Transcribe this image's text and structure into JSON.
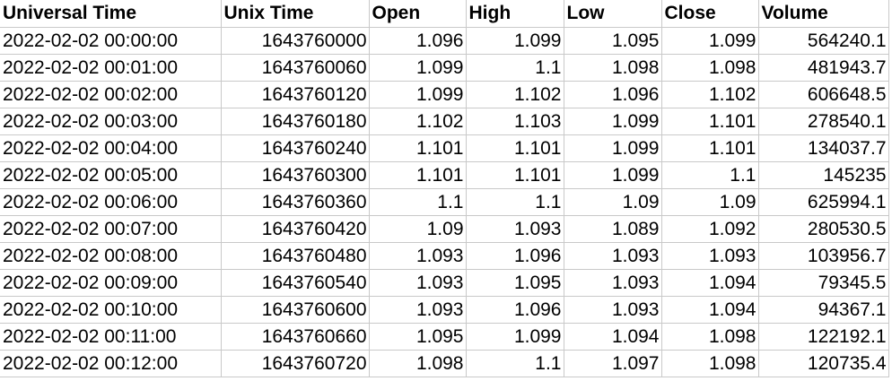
{
  "sheet": {
    "headers": [
      "Universal Time",
      "Unix Time",
      "Open",
      "High",
      "Low",
      "Close",
      "Volume"
    ],
    "rows": [
      [
        "2022-02-02 00:00:00",
        "1643760000",
        "1.096",
        "1.099",
        "1.095",
        "1.099",
        "564240.1"
      ],
      [
        "2022-02-02 00:01:00",
        "1643760060",
        "1.099",
        "1.1",
        "1.098",
        "1.098",
        "481943.7"
      ],
      [
        "2022-02-02 00:02:00",
        "1643760120",
        "1.099",
        "1.102",
        "1.096",
        "1.102",
        "606648.5"
      ],
      [
        "2022-02-02 00:03:00",
        "1643760180",
        "1.102",
        "1.103",
        "1.099",
        "1.101",
        "278540.1"
      ],
      [
        "2022-02-02 00:04:00",
        "1643760240",
        "1.101",
        "1.101",
        "1.099",
        "1.101",
        "134037.7"
      ],
      [
        "2022-02-02 00:05:00",
        "1643760300",
        "1.101",
        "1.101",
        "1.099",
        "1.1",
        "145235"
      ],
      [
        "2022-02-02 00:06:00",
        "1643760360",
        "1.1",
        "1.1",
        "1.09",
        "1.09",
        "625994.1"
      ],
      [
        "2022-02-02 00:07:00",
        "1643760420",
        "1.09",
        "1.093",
        "1.089",
        "1.092",
        "280530.5"
      ],
      [
        "2022-02-02 00:08:00",
        "1643760480",
        "1.093",
        "1.096",
        "1.093",
        "1.093",
        "103956.7"
      ],
      [
        "2022-02-02 00:09:00",
        "1643760540",
        "1.093",
        "1.095",
        "1.093",
        "1.094",
        "79345.5"
      ],
      [
        "2022-02-02 00:10:00",
        "1643760600",
        "1.093",
        "1.096",
        "1.093",
        "1.094",
        "94367.1"
      ],
      [
        "2022-02-02 00:11:00",
        "1643760660",
        "1.095",
        "1.099",
        "1.094",
        "1.098",
        "122192.1"
      ],
      [
        "2022-02-02 00:12:00",
        "1643760720",
        "1.098",
        "1.1",
        "1.097",
        "1.098",
        "120735.4"
      ]
    ]
  }
}
